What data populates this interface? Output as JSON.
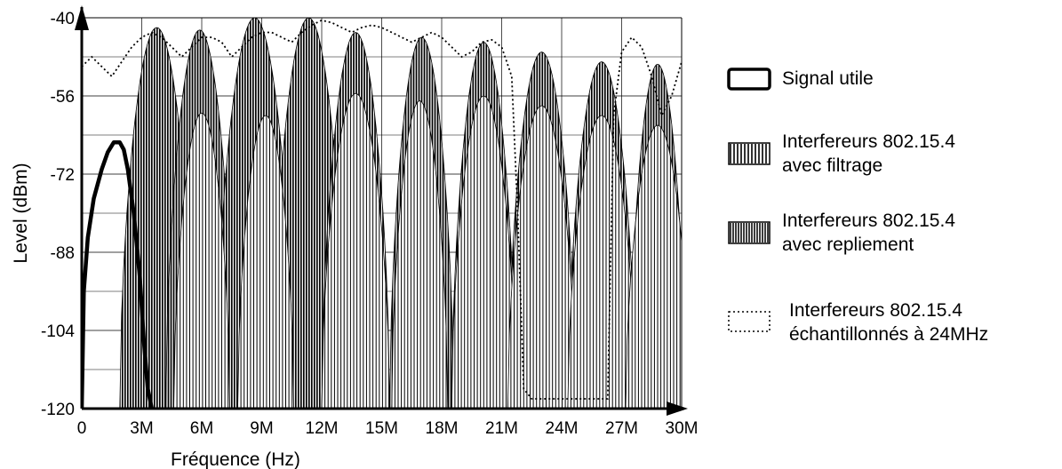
{
  "chart_data": {
    "type": "area",
    "xlabel": "Fréquence (Hz)",
    "ylabel": "Level (dBm)",
    "xlim": [
      0,
      30
    ],
    "ylim": [
      -120,
      -40
    ],
    "x_unit": "MHz",
    "x_tick_values": [
      0,
      3,
      6,
      9,
      12,
      15,
      18,
      21,
      24,
      27,
      30
    ],
    "x_tick_labels": [
      "0",
      "3M",
      "6M",
      "9M",
      "12M",
      "15M",
      "18M",
      "21M",
      "24M",
      "27M",
      "30M"
    ],
    "y_tick_values": [
      -40,
      -56,
      -72,
      -88,
      -104,
      -120
    ],
    "y_tick_labels": [
      "-40",
      "-56",
      "-72",
      "-88",
      "-104",
      "-120"
    ],
    "grid": true,
    "legend_position": "right",
    "series": [
      {
        "name": "Signal utile",
        "style": "thick-line",
        "x": [
          0,
          0.1,
          0.3,
          0.6,
          1.0,
          1.3,
          1.6,
          1.9,
          2.1,
          2.3,
          2.6,
          2.9,
          3.1,
          3.3,
          3.5
        ],
        "y": [
          -120,
          -96,
          -85,
          -77,
          -71,
          -67.5,
          -65.5,
          -65.5,
          -67,
          -71,
          -80,
          -93,
          -106,
          -116,
          -120
        ]
      },
      {
        "name": "Interfereurs 802.15.4 avec filtrage",
        "style": "vertical-hatch",
        "bands": [
          {
            "start": 4.6,
            "end": 7.4,
            "peak": -59.5
          },
          {
            "start": 7.8,
            "end": 10.6,
            "peak": -60
          },
          {
            "start": 12.0,
            "end": 15.4,
            "peak": -55.5
          },
          {
            "start": 15.5,
            "end": 18.3,
            "peak": -57
          },
          {
            "start": 18.5,
            "end": 21.7,
            "peak": -56
          },
          {
            "start": 21.3,
            "end": 24.7,
            "peak": -58
          },
          {
            "start": 24.3,
            "end": 27.7,
            "peak": -60
          },
          {
            "start": 27.2,
            "end": 30.4,
            "peak": -62
          }
        ]
      },
      {
        "name": "Interfereurs 802.15.4 avec repliement",
        "style": "dense-vertical-hatch",
        "bands": [
          {
            "start": 1.9,
            "end": 5.6,
            "peak": -42
          },
          {
            "start": 4.2,
            "end": 7.6,
            "peak": -42.5
          },
          {
            "start": 6.7,
            "end": 10.6,
            "peak": -40
          },
          {
            "start": 9.5,
            "end": 13.2,
            "peak": -40
          },
          {
            "start": 12.0,
            "end": 15.4,
            "peak": -43
          },
          {
            "start": 15.4,
            "end": 18.6,
            "peak": -44
          },
          {
            "start": 18.5,
            "end": 21.7,
            "peak": -45
          },
          {
            "start": 21.3,
            "end": 24.7,
            "peak": -47
          },
          {
            "start": 24.3,
            "end": 27.7,
            "peak": -49
          },
          {
            "start": 27.4,
            "end": 30.2,
            "peak": -49.5
          }
        ]
      },
      {
        "name": "Interfereurs 802.15.4 échantillonnés à 24MHz",
        "style": "dotted-line",
        "x": [
          0,
          0.5,
          1.0,
          1.5,
          2.0,
          2.5,
          3.0,
          3.5,
          4.0,
          4.5,
          5.0,
          5.5,
          6.0,
          6.5,
          7.0,
          7.5,
          8.0,
          8.5,
          9.0,
          9.5,
          10.0,
          10.5,
          11.0,
          11.5,
          12.0,
          12.5,
          13.0,
          13.5,
          14.0,
          14.5,
          15.0,
          15.5,
          16.0,
          16.5,
          17.0,
          17.5,
          18.0,
          18.5,
          19.0,
          19.5,
          20.0,
          20.5,
          21.0,
          21.5,
          21.8,
          22.1,
          22.5,
          23.5,
          24.5,
          25.5,
          26.3,
          26.6,
          27.0,
          27.5,
          28.0,
          28.5,
          29.0,
          29.5,
          30.0
        ],
        "y": [
          -50,
          -48,
          -50,
          -52,
          -49,
          -46,
          -44,
          -43,
          -44,
          -46,
          -48,
          -46,
          -44,
          -44,
          -45,
          -48,
          -46,
          -44,
          -43,
          -43,
          -44,
          -45,
          -43,
          -41.5,
          -40.5,
          -41,
          -42,
          -43,
          -42,
          -41.5,
          -42,
          -43,
          -44,
          -45,
          -44,
          -43,
          -44,
          -46,
          -48,
          -47,
          -45,
          -44.5,
          -46,
          -52,
          -80,
          -116,
          -118,
          -118,
          -118,
          -118,
          -118,
          -60,
          -47,
          -44,
          -46,
          -52,
          -60,
          -56,
          -49
        ]
      }
    ],
    "colors": {
      "signal": "#000000",
      "hatch": "#000000",
      "grid": "#000000",
      "background": "#ffffff"
    }
  },
  "legend": {
    "items": [
      {
        "label": "Signal utile"
      },
      {
        "label": "Interfereurs 802.15.4\navec filtrage"
      },
      {
        "label": "Interfereurs 802.15.4\navec repliement"
      },
      {
        "label": "Interfereurs 802.15.4\néchantillonnés à 24MHz"
      }
    ]
  }
}
